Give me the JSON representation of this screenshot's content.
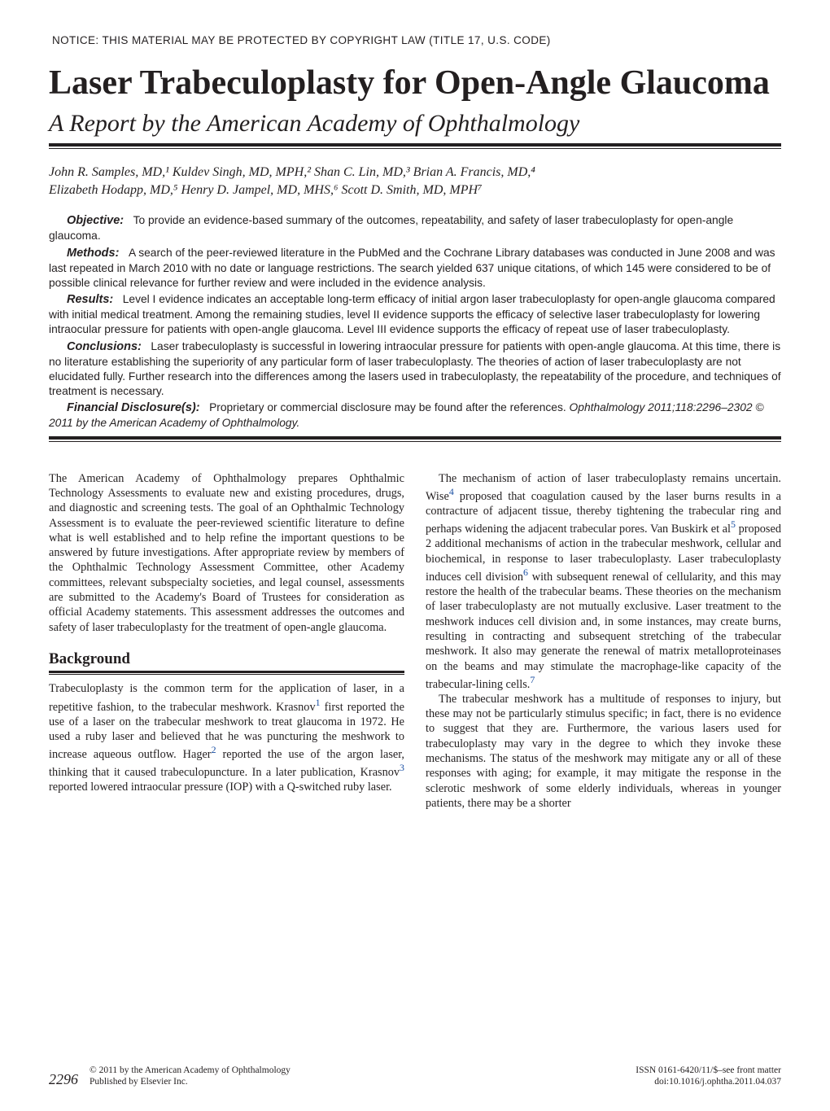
{
  "notice": "NOTICE:  THIS MATERIAL MAY BE PROTECTED BY COPYRIGHT LAW (TITLE 17, U.S. CODE)",
  "title": "Laser Trabeculoplasty for Open-Angle Glaucoma",
  "subtitle": "A Report by the American Academy of Ophthalmology",
  "authors_line1": "John R. Samples, MD,¹ Kuldev Singh, MD, MPH,² Shan C. Lin, MD,³ Brian A. Francis, MD,⁴",
  "authors_line2": "Elizabeth Hodapp, MD,⁵ Henry D. Jampel, MD, MHS,⁶ Scott D. Smith, MD, MPH⁷",
  "abstract": {
    "objective_label": "Objective:",
    "objective": "To provide an evidence-based summary of the outcomes, repeatability, and safety of laser trabeculoplasty for open-angle glaucoma.",
    "methods_label": "Methods:",
    "methods": "A search of the peer-reviewed literature in the PubMed and the Cochrane Library databases was conducted in June 2008 and was last repeated in March 2010 with no date or language restrictions. The search yielded 637 unique citations, of which 145 were considered to be of possible clinical relevance for further review and were included in the evidence analysis.",
    "results_label": "Results:",
    "results": "Level I evidence indicates an acceptable long-term efficacy of initial argon laser trabeculoplasty for open-angle glaucoma compared with initial medical treatment. Among the remaining studies, level II evidence supports the efficacy of selective laser trabeculoplasty for lowering intraocular pressure for patients with open-angle glaucoma. Level III evidence supports the efficacy of repeat use of laser trabeculoplasty.",
    "conclusions_label": "Conclusions:",
    "conclusions": "Laser trabeculoplasty is successful in lowering intraocular pressure for patients with open-angle glaucoma. At this time, there is no literature establishing the superiority of any particular form of laser trabeculoplasty. The theories of action of laser trabeculoplasty are not elucidated fully. Further research into the differences among the lasers used in trabeculoplasty, the repeatability of the procedure, and techniques of treatment is necessary.",
    "disclosure_label": "Financial Disclosure(s):",
    "disclosure": "Proprietary or commercial disclosure may be found after the references.",
    "citation": "Ophthalmology 2011;118:2296–2302 © 2011 by the American Academy of Ophthalmology."
  },
  "body": {
    "left_p1": "The American Academy of Ophthalmology prepares Ophthalmic Technology Assessments to evaluate new and existing procedures, drugs, and diagnostic and screening tests. The goal of an Ophthalmic Technology Assessment is to evaluate the peer-reviewed scientific literature to define what is well established and to help refine the important questions to be answered by future investigations. After appropriate review by members of the Ophthalmic Technology Assessment Committee, other Academy committees, relevant subspecialty societies, and legal counsel, assessments are submitted to the Academy's Board of Trustees for consideration as official Academy statements. This assessment addresses the outcomes and safety of laser trabeculoplasty for the treatment of open-angle glaucoma.",
    "background_heading": "Background",
    "left_p2_a": "Trabeculoplasty is the common term for the application of laser, in a repetitive fashion, to the trabecular meshwork. Krasnov",
    "ref1": "1",
    "left_p2_b": " first reported the use of a laser on the trabecular meshwork to treat glaucoma in 1972. He used a ruby laser and believed that he was puncturing the meshwork to increase aqueous outflow. Hager",
    "ref2": "2",
    "left_p2_c": " reported the use of the argon laser, thinking that it caused trabeculopuncture. In a later publication, Krasnov",
    "ref3": "3",
    "left_p2_d": " reported lowered intraocular pressure (IOP) with a Q-switched ruby laser.",
    "right_p1_a": "The mechanism of action of laser trabeculoplasty remains uncertain. Wise",
    "ref4": "4",
    "right_p1_b": " proposed that coagulation caused by the laser burns results in a contracture of adjacent tissue, thereby tightening the trabecular ring and perhaps widening the adjacent trabecular pores. Van Buskirk et al",
    "ref5": "5",
    "right_p1_c": " proposed 2 additional mechanisms of action in the trabecular meshwork, cellular and biochemical, in response to laser trabeculoplasty. Laser trabeculoplasty induces cell division",
    "ref6": "6",
    "right_p1_d": " with subsequent renewal of cellularity, and this may restore the health of the trabecular beams. These theories on the mechanism of laser trabeculoplasty are not mutually exclusive. Laser treatment to the meshwork induces cell division and, in some instances, may create burns, resulting in contracting and subsequent stretching of the trabecular meshwork. It also may generate the renewal of matrix metalloproteinases on the beams and may stimulate the macrophage-like capacity of the trabecular-lining cells.",
    "ref7": "7",
    "right_p2": "The trabecular meshwork has a multitude of responses to injury, but these may not be particularly stimulus specific; in fact, there is no evidence to suggest that they are. Furthermore, the various lasers used for trabeculoplasty may vary in the degree to which they invoke these mechanisms. The status of the meshwork may mitigate any or all of these responses with aging; for example, it may mitigate the response in the sclerotic meshwork of some elderly individuals, whereas in younger patients, there may be a shorter"
  },
  "footer": {
    "page": "2296",
    "copyright": "© 2011 by the American Academy of Ophthalmology",
    "publisher": "Published by Elsevier Inc.",
    "issn": "ISSN 0161-6420/11/$–see front matter",
    "doi": "doi:10.1016/j.ophtha.2011.04.037"
  },
  "colors": {
    "text": "#231f20",
    "link": "#1a4fa3",
    "background": "#ffffff"
  }
}
